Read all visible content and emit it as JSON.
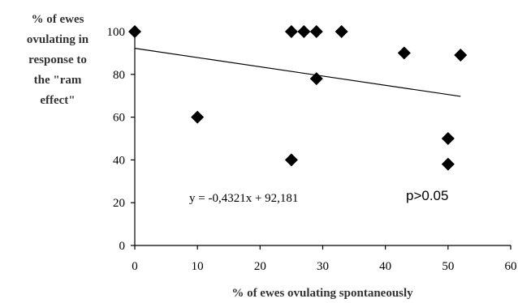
{
  "chart_data": {
    "type": "scatter",
    "title": "",
    "ylabel_lines": [
      "% of ewes",
      "ovulating in",
      "response to",
      "the \"ram",
      "effect\""
    ],
    "xlabel": "% of ewes ovulating spontaneously",
    "xlim": [
      0,
      60
    ],
    "ylim": [
      0,
      100
    ],
    "xticks": [
      "0",
      "10",
      "20",
      "30",
      "40",
      "50",
      "60"
    ],
    "yticks": [
      "0",
      "20",
      "40",
      "60",
      "80",
      "100"
    ],
    "grid": false,
    "legend": "none",
    "marker_color": "#000000",
    "points": [
      {
        "x": 0,
        "y": 100
      },
      {
        "x": 10,
        "y": 60
      },
      {
        "x": 25,
        "y": 100
      },
      {
        "x": 25,
        "y": 40
      },
      {
        "x": 27,
        "y": 100
      },
      {
        "x": 29,
        "y": 100
      },
      {
        "x": 29,
        "y": 78
      },
      {
        "x": 33,
        "y": 100
      },
      {
        "x": 43,
        "y": 90
      },
      {
        "x": 50,
        "y": 50
      },
      {
        "x": 50,
        "y": 38
      },
      {
        "x": 52,
        "y": 89
      }
    ],
    "trendline": {
      "slope": -0.4321,
      "intercept": 92.181,
      "x_range": [
        0,
        52
      ]
    },
    "annotations": {
      "equation": "y = -0,4321x + 92,181",
      "pvalue": "p>0.05"
    }
  }
}
